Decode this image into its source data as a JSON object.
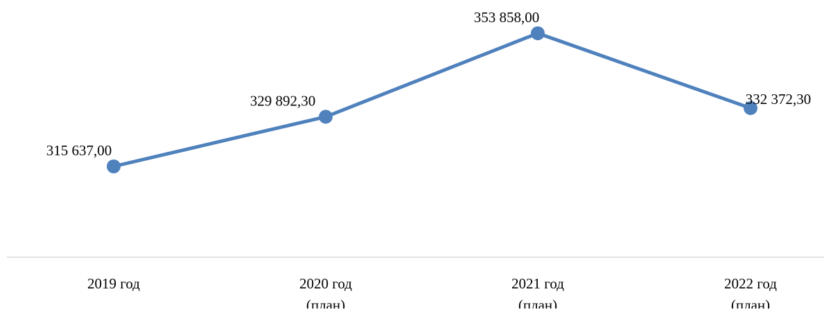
{
  "chart_data": {
    "type": "line",
    "categories": [
      [
        "2019 год"
      ],
      [
        "2020 год",
        "(план)"
      ],
      [
        "2021 год",
        "(план)"
      ],
      [
        "2022 год",
        "(план)"
      ]
    ],
    "series": [
      {
        "values": [
          315637.0,
          329892.3,
          353858.0,
          332372.3
        ],
        "labels": [
          "315 637,00",
          "329 892,30",
          "353 858,00",
          "332 372,30"
        ],
        "color": "#4f81bd"
      }
    ],
    "ylim": [
      300000,
      356000
    ],
    "grid": false,
    "legend": "none",
    "axis_color": "#d9d9d9"
  }
}
